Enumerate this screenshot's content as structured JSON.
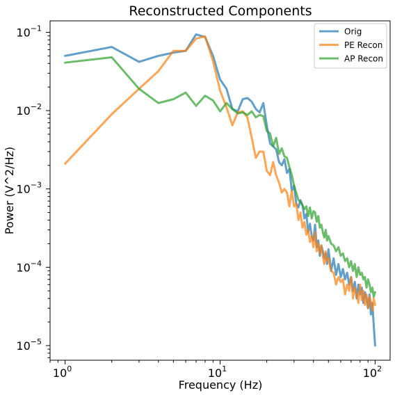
{
  "chart_data": {
    "type": "line",
    "title": "Reconstructed Components",
    "xlabel": "Frequency (Hz)",
    "ylabel": "Power (V^2/Hz)",
    "xscale": "log",
    "yscale": "log",
    "xlim": [
      0.8,
      125
    ],
    "ylim": [
      6.5e-06,
      0.14
    ],
    "grid": false,
    "legend_position": "top-right",
    "x_ticks": [
      {
        "value": 1,
        "base": "10",
        "exp": "0"
      },
      {
        "value": 10,
        "base": "10",
        "exp": "1"
      },
      {
        "value": 100,
        "base": "10",
        "exp": "2"
      }
    ],
    "y_ticks": [
      {
        "value": 1e-05,
        "base": "10",
        "exp": "−5"
      },
      {
        "value": 0.0001,
        "base": "10",
        "exp": "−4"
      },
      {
        "value": 0.001,
        "base": "10",
        "exp": "−3"
      },
      {
        "value": 0.01,
        "base": "10",
        "exp": "−2"
      },
      {
        "value": 0.1,
        "base": "10",
        "exp": "−1"
      }
    ],
    "series": [
      {
        "name": "Orig",
        "color": "#1f77b4",
        "x": [
          1,
          2,
          3,
          4,
          5,
          6,
          7,
          8,
          9,
          10,
          11,
          12,
          13,
          14,
          15,
          16,
          17,
          18,
          19,
          20,
          21,
          22,
          23,
          24,
          25,
          26,
          27,
          28,
          29,
          30,
          31,
          32,
          33,
          34,
          35,
          36,
          37,
          38,
          39,
          40,
          41,
          42,
          43,
          44,
          45,
          46,
          47,
          48,
          49,
          50,
          52,
          54,
          56,
          58,
          60,
          62,
          64,
          66,
          68,
          70,
          72,
          74,
          76,
          78,
          80,
          82,
          84,
          86,
          88,
          90,
          92,
          94,
          96,
          98,
          100
        ],
        "y": [
          0.05,
          0.065,
          0.042,
          0.05,
          0.055,
          0.058,
          0.094,
          0.087,
          0.05,
          0.025,
          0.019,
          0.0105,
          0.0098,
          0.014,
          0.0145,
          0.013,
          0.0105,
          0.0095,
          0.0125,
          0.0065,
          0.0038,
          0.0035,
          0.0032,
          0.0022,
          0.002,
          0.0024,
          0.0016,
          0.0018,
          0.00095,
          0.0011,
          0.00065,
          0.00058,
          0.00072,
          0.00062,
          0.00042,
          0.00048,
          0.00028,
          0.00036,
          0.00025,
          0.00022,
          0.00035,
          0.00018,
          0.00022,
          0.00014,
          0.00019,
          0.00016,
          0.00013,
          0.00015,
          0.00011,
          0.00017,
          9e-05,
          0.00013,
          8e-05,
          0.00011,
          7.5e-05,
          9.5e-05,
          7e-05,
          8.5e-05,
          6e-05,
          7.5e-05,
          5e-05,
          6.5e-05,
          4e-05,
          6e-05,
          4.5e-05,
          5.5e-05,
          3.5e-05,
          4.8e-05,
          4e-05,
          3e-05,
          4.5e-05,
          2.5e-05,
          3.5e-05,
          1.8e-05,
          1e-05
        ]
      },
      {
        "name": "PE Recon",
        "color": "#ff7f0e",
        "x": [
          1,
          2,
          3,
          4,
          5,
          6,
          7,
          8,
          9,
          10,
          11,
          12,
          13,
          14,
          15,
          16,
          17,
          18,
          19,
          20,
          21,
          22,
          23,
          24,
          25,
          26,
          27,
          28,
          29,
          30,
          31,
          32,
          33,
          34,
          35,
          36,
          37,
          38,
          39,
          40,
          41,
          42,
          43,
          44,
          45,
          46,
          47,
          48,
          49,
          50,
          52,
          54,
          56,
          58,
          60,
          62,
          64,
          66,
          68,
          70,
          72,
          74,
          76,
          78,
          80,
          82,
          84,
          86,
          88,
          90,
          92,
          94,
          96,
          98,
          100
        ],
        "y": [
          0.0021,
          0.009,
          0.019,
          0.032,
          0.058,
          0.058,
          0.083,
          0.089,
          0.043,
          0.018,
          0.011,
          0.0065,
          0.0095,
          0.0098,
          0.0082,
          0.0045,
          0.0025,
          0.003,
          0.003,
          0.0017,
          0.0015,
          0.0022,
          0.0015,
          0.0012,
          0.0009,
          0.001,
          0.0009,
          0.0006,
          0.00095,
          0.0006,
          0.00065,
          0.0004,
          0.0005,
          0.00032,
          0.00038,
          0.00026,
          0.0003,
          0.00021,
          0.00025,
          0.00018,
          0.00028,
          0.00016,
          0.0002,
          0.00015,
          0.00019,
          0.00014,
          0.00011,
          0.00016,
          0.00012,
          0.00013,
          9e-05,
          8.5e-05,
          6e-05,
          7.5e-05,
          6.5e-05,
          7e-05,
          4.5e-05,
          6e-05,
          5e-05,
          7.5e-05,
          4e-05,
          5.5e-05,
          4.5e-05,
          3.5e-05,
          6e-05,
          3.8e-05,
          5e-05,
          3.3e-05,
          4.5e-05,
          3e-05,
          4.2e-05,
          3.5e-05,
          2.8e-05,
          4e-05,
          3.3e-05
        ]
      },
      {
        "name": "AP Recon",
        "color": "#2ca02c",
        "x": [
          1,
          2,
          3,
          4,
          5,
          6,
          7,
          8,
          9,
          10,
          11,
          12,
          13,
          14,
          15,
          16,
          17,
          18,
          19,
          20,
          21,
          22,
          23,
          24,
          25,
          26,
          27,
          28,
          29,
          30,
          31,
          32,
          33,
          34,
          35,
          36,
          37,
          38,
          39,
          40,
          41,
          42,
          43,
          44,
          45,
          46,
          47,
          48,
          49,
          50,
          52,
          54,
          56,
          58,
          60,
          62,
          64,
          66,
          68,
          70,
          72,
          74,
          76,
          78,
          80,
          82,
          84,
          86,
          88,
          90,
          92,
          94,
          96,
          98,
          100
        ],
        "y": [
          0.041,
          0.048,
          0.019,
          0.0125,
          0.014,
          0.017,
          0.0115,
          0.0155,
          0.0135,
          0.0098,
          0.0125,
          0.0105,
          0.0092,
          0.0095,
          0.0088,
          0.0098,
          0.0082,
          0.0088,
          0.0085,
          0.0055,
          0.0051,
          0.0035,
          0.0045,
          0.0028,
          0.0033,
          0.0026,
          0.0025,
          0.0019,
          0.0015,
          0.0011,
          0.0009,
          0.00072,
          0.00068,
          0.00062,
          0.00055,
          0.0006,
          0.00045,
          0.00058,
          0.00042,
          0.00052,
          0.0005,
          0.00038,
          0.00045,
          0.00032,
          0.00035,
          0.00028,
          0.00024,
          0.0003,
          0.00022,
          0.00025,
          0.0002,
          0.00019,
          0.00016,
          0.00018,
          0.00014,
          0.00015,
          0.00012,
          0.00013,
          0.0001,
          0.00012,
          9e-05,
          0.00011,
          7.5e-05,
          0.0001,
          8e-05,
          8.5e-05,
          7e-05,
          7.5e-05,
          5.5e-05,
          7e-05,
          6e-05,
          4.8e-05,
          5.5e-05,
          4.2e-05,
          4.8e-05
        ]
      }
    ]
  }
}
